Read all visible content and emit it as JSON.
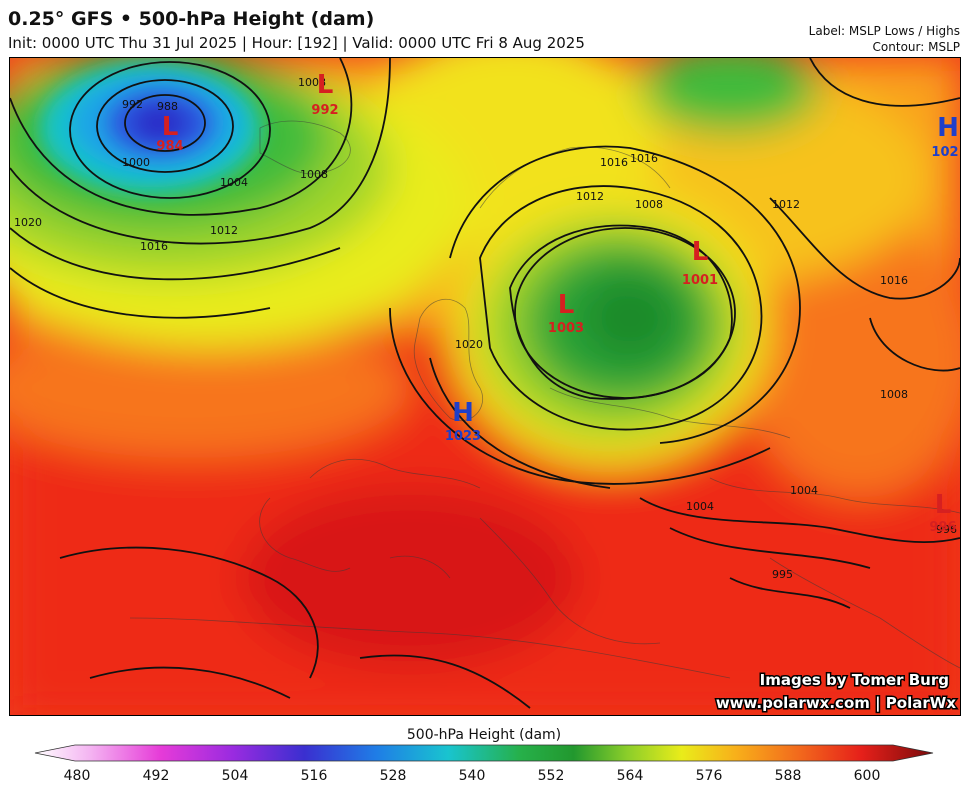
{
  "header": {
    "title": "0.25° GFS • 500-hPa Height (dam)",
    "subtitle": "Init: 0000 UTC Thu 31 Jul 2025 | Hour: [192] | Valid: 0000 UTC Fri 8 Aug 2025",
    "label_note": "Label: MSLP Lows / Highs",
    "contour_note": "Contour: MSLP"
  },
  "pressure_centers": [
    {
      "type": "L",
      "value": "984",
      "color": "#d62020"
    },
    {
      "type": "L",
      "value": "992",
      "color": "#d62020"
    },
    {
      "type": "H",
      "value": "102",
      "color": "#1f3fc9"
    },
    {
      "type": "L",
      "value": "1001",
      "color": "#d62020"
    },
    {
      "type": "L",
      "value": "1003",
      "color": "#d62020"
    },
    {
      "type": "H",
      "value": "1023",
      "color": "#1f3fc9"
    },
    {
      "type": "L",
      "value": "996",
      "color": "#d62020"
    }
  ],
  "isobar_labels": [
    "988",
    "992",
    "1000",
    "1004",
    "1008",
    "1012",
    "1016",
    "1020",
    "1008",
    "1012",
    "1016",
    "1016",
    "1012",
    "1008",
    "1004",
    "1004",
    "1008",
    "1020",
    "1016",
    "996",
    "995"
  ],
  "credits": {
    "line1": "Images by Tomer Burg",
    "line2": "www.polarwx.com | PolarWx"
  },
  "colorbar": {
    "title": "500-hPa Height (dam)",
    "ticks": [
      "480",
      "492",
      "504",
      "516",
      "528",
      "540",
      "552",
      "564",
      "576",
      "588",
      "600"
    ]
  }
}
